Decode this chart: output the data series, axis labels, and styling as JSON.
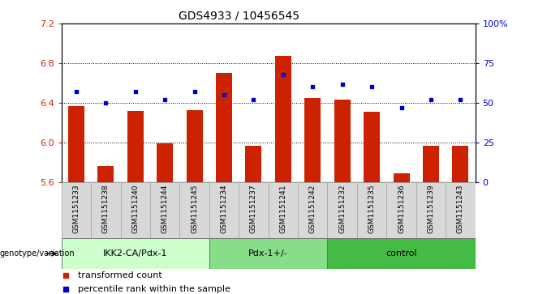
{
  "title": "GDS4933 / 10456545",
  "samples": [
    "GSM1151233",
    "GSM1151238",
    "GSM1151240",
    "GSM1151244",
    "GSM1151245",
    "GSM1151234",
    "GSM1151237",
    "GSM1151241",
    "GSM1151242",
    "GSM1151232",
    "GSM1151235",
    "GSM1151236",
    "GSM1151239",
    "GSM1151243"
  ],
  "bar_values": [
    6.37,
    5.76,
    6.32,
    5.99,
    6.33,
    6.7,
    5.97,
    6.87,
    6.45,
    6.43,
    6.31,
    5.69,
    5.97,
    5.97
  ],
  "percentile_values": [
    57,
    50,
    57,
    52,
    57,
    55,
    52,
    68,
    60,
    62,
    60,
    47,
    52,
    52
  ],
  "bar_bottom": 5.6,
  "ylim_left": [
    5.6,
    7.2
  ],
  "ylim_right": [
    0,
    100
  ],
  "yticks_left": [
    5.6,
    6.0,
    6.4,
    6.8,
    7.2
  ],
  "yticks_right": [
    0,
    25,
    50,
    75,
    100
  ],
  "ytick_labels_right": [
    "0",
    "25",
    "50",
    "75",
    "100%"
  ],
  "bar_color": "#cc2200",
  "dot_color": "#0000cc",
  "groups": [
    {
      "label": "IKK2-CA/Pdx-1",
      "start": 0,
      "end": 5
    },
    {
      "label": "Pdx-1+/-",
      "start": 5,
      "end": 9
    },
    {
      "label": "control",
      "start": 9,
      "end": 14
    }
  ],
  "group_colors": [
    "#ccffcc",
    "#88dd88",
    "#44bb44"
  ],
  "group_row_label": "genotype/variation",
  "legend_items": [
    {
      "label": "transformed count",
      "color": "#cc2200"
    },
    {
      "label": "percentile rank within the sample",
      "color": "#0000cc"
    }
  ],
  "sample_box_color": "#d8d8d8",
  "sample_box_edge": "#aaaaaa"
}
